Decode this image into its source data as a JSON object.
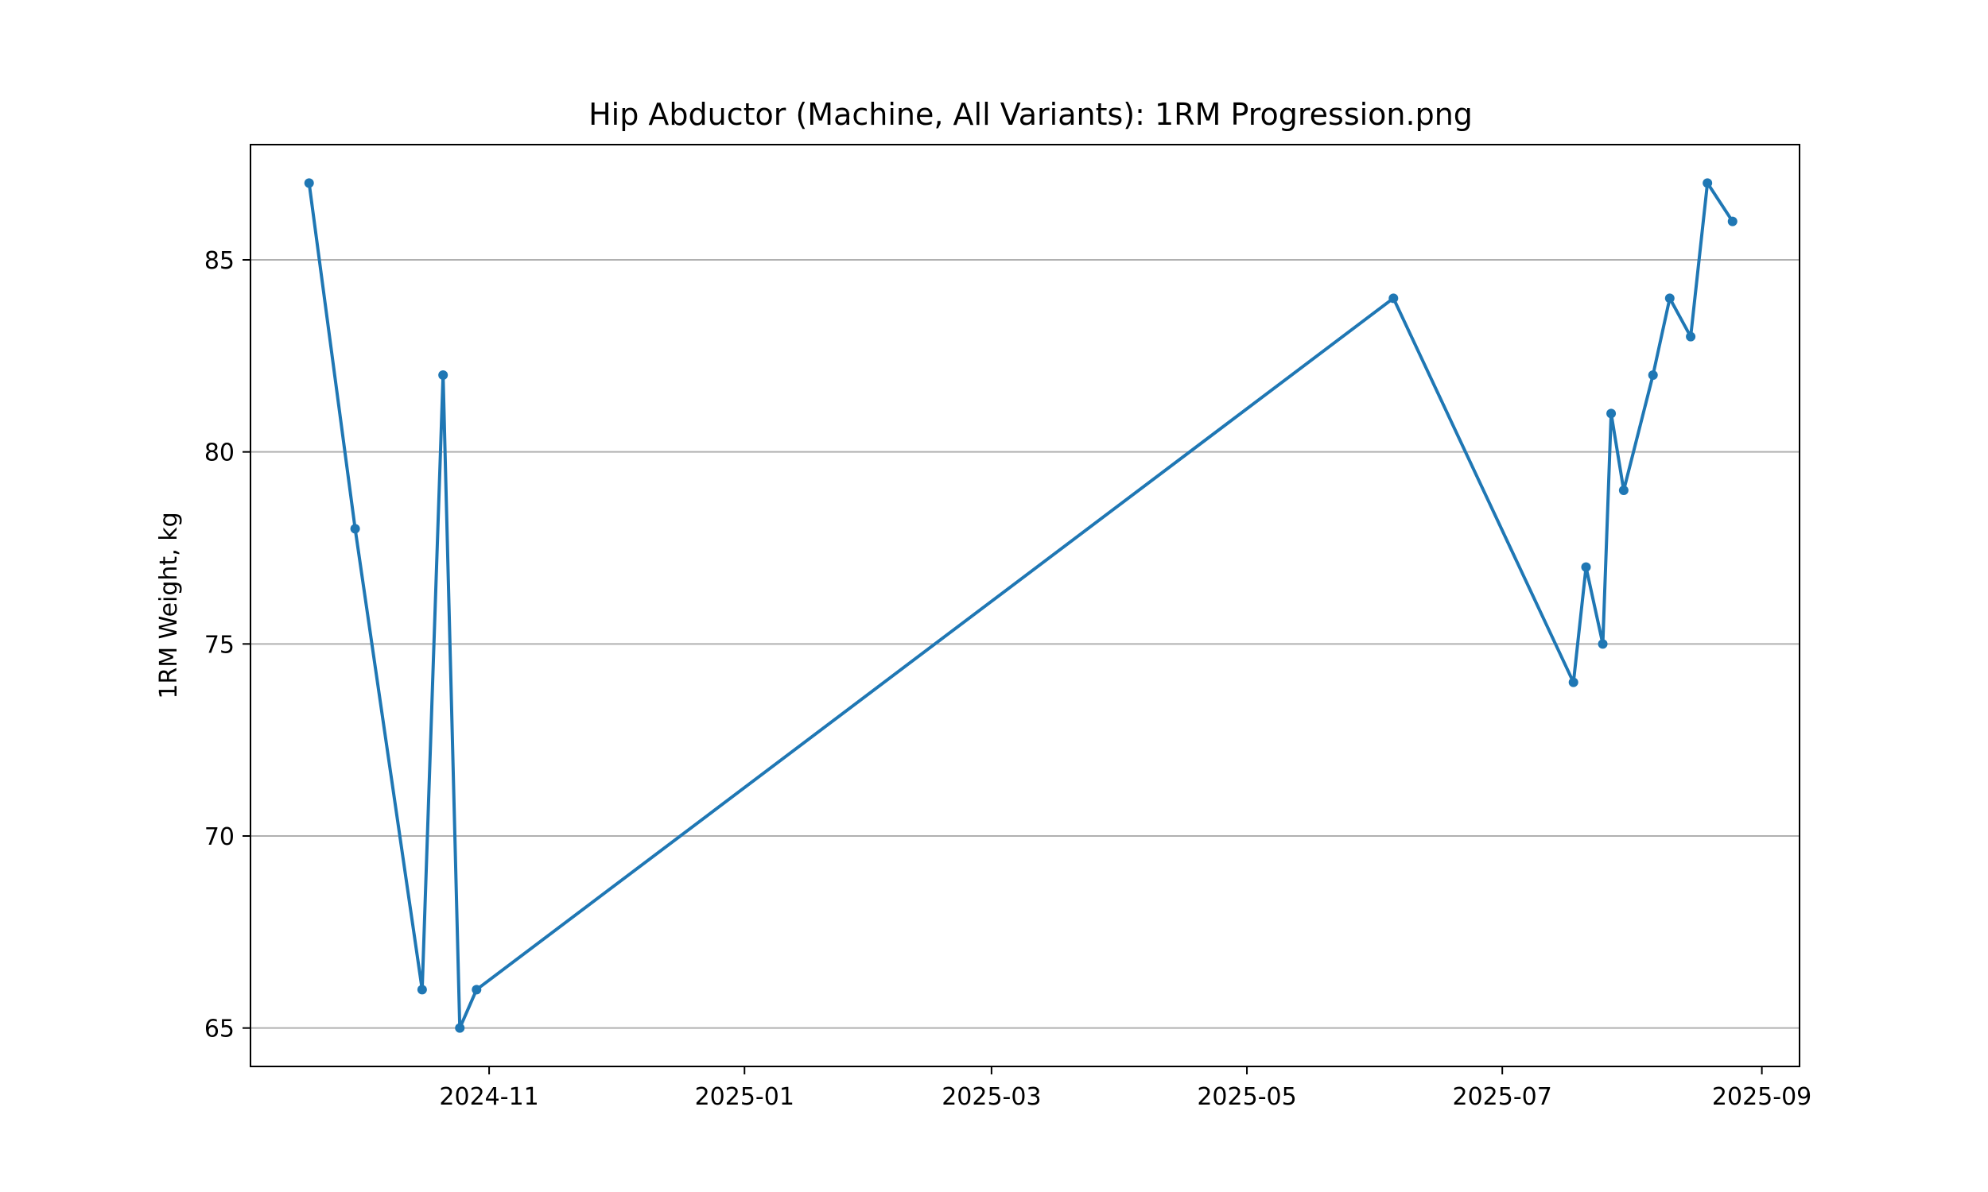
{
  "chart_data": {
    "type": "line",
    "title": "Hip Abductor (Machine, All Variants): 1RM Progression.png",
    "xlabel": "",
    "ylabel": "1RM Weight, kg",
    "x_axis_type": "date",
    "xlim": [
      "2024-09-05",
      "2025-09-10"
    ],
    "ylim": [
      64,
      88
    ],
    "xticks": [
      "2024-11-01",
      "2025-01-01",
      "2025-03-01",
      "2025-05-01",
      "2025-07-01",
      "2025-09-01"
    ],
    "xtick_labels": [
      "2024-11",
      "2025-01",
      "2025-03",
      "2025-05",
      "2025-07",
      "2025-09"
    ],
    "yticks": [
      65,
      70,
      75,
      80,
      85
    ],
    "ytick_labels": [
      "65",
      "70",
      "75",
      "80",
      "85"
    ],
    "grid": "y",
    "legend": "none",
    "series": [
      {
        "color": "#1f77b4",
        "marker": "circle",
        "x": [
          "2024-09-19",
          "2024-09-30",
          "2024-10-16",
          "2024-10-21",
          "2024-10-25",
          "2024-10-29",
          "2025-06-05",
          "2025-07-18",
          "2025-07-21",
          "2025-07-25",
          "2025-07-27",
          "2025-07-30",
          "2025-08-06",
          "2025-08-10",
          "2025-08-15",
          "2025-08-19",
          "2025-08-25"
        ],
        "y": [
          87,
          78,
          66,
          82,
          65,
          66,
          84,
          74,
          77,
          75,
          81,
          79,
          82,
          84,
          83,
          87,
          86
        ]
      }
    ]
  }
}
